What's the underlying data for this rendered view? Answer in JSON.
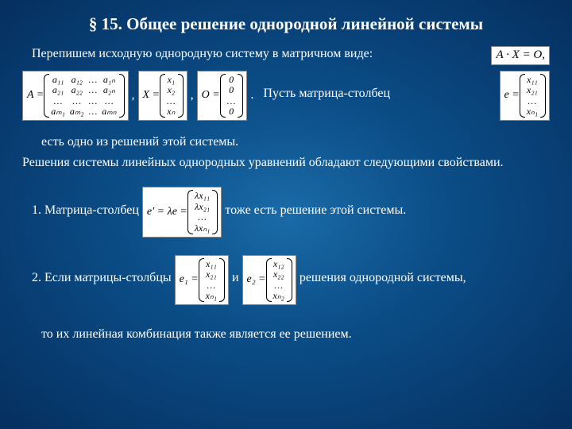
{
  "title": "§ 15. Общее решение однородной линейной системы",
  "intro": "Перепишем исходную однородную систему в матричном виде:",
  "eq_axo": "A · X = O,",
  "mid_text": "Пусть матрица-столбец",
  "solution_text1": "есть одно из решений этой системы.",
  "solution_text2": "Решения системы линейных однородных уравнений обладают следующими свойствами.",
  "prop1_pre": "1. Матрица-столбец",
  "prop1_post": "тоже есть решение этой системы.",
  "prop2_pre": "2. Если матрицы-столбцы",
  "prop2_mid": "и",
  "prop2_post": "решения однородной системы,",
  "conclusion": "то их линейная комбинация также является ее решением.",
  "A_label": "A =",
  "X_label": "X =",
  "O_label": "O =",
  "e_label": "e =",
  "eprime_label": "e′ = λe =",
  "e1_label": "e₁ =",
  "e2_label": "e₂ =",
  "comma": ",",
  "period": ".",
  "matrix_A": [
    [
      "a₁₁",
      "a₁₂",
      "…",
      "a₁ₙ"
    ],
    [
      "a₂₁",
      "a₂₂",
      "…",
      "a₂ₙ"
    ],
    [
      "…",
      "…",
      "…",
      "…"
    ],
    [
      "aₘ₁",
      "aₘ₂",
      "…",
      "aₘₙ"
    ]
  ],
  "vec_X": [
    "x₁",
    "x₂",
    "…",
    "xₙ"
  ],
  "vec_O": [
    "0",
    "0",
    "…",
    "0"
  ],
  "vec_e": [
    "x₁₁",
    "x₂₁",
    "…",
    "xₙ₁"
  ],
  "vec_le": [
    "λx₁₁",
    "λx₂₁",
    "…",
    "λxₙ₁"
  ],
  "vec_e1": [
    "x₁₁",
    "x₂₁",
    "…",
    "xₙ₁"
  ],
  "vec_e2": [
    "x₁₂",
    "x₂₂",
    "…",
    "xₙ₂"
  ]
}
